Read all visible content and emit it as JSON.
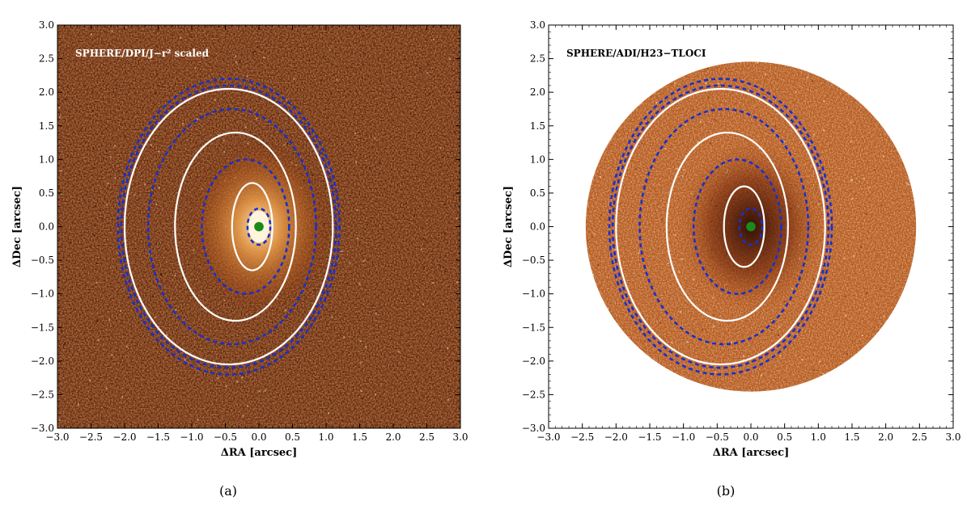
{
  "chart_data": [
    {
      "type": "image",
      "panel": "(a)",
      "title": "SPHERE/DPI/J−r² scaled",
      "xlabel": "ΔRA [arcsec]",
      "ylabel": "ΔDec [arcsec]",
      "xlim": [
        -3.0,
        3.0
      ],
      "ylim": [
        -3.0,
        3.0
      ],
      "x_ticks": [
        "−3.0",
        "−2.5",
        "−2.0",
        "−1.5",
        "−1.0",
        "−0.5",
        "0.0",
        "0.5",
        "1.0",
        "1.5",
        "2.0",
        "2.5",
        "3.0"
      ],
      "y_ticks": [
        "−3.0",
        "−2.5",
        "−2.0",
        "−1.5",
        "−1.0",
        "−0.5",
        "0.0",
        "0.5",
        "1.0",
        "1.5",
        "2.0",
        "2.5",
        "3.0"
      ],
      "field": "square",
      "ellipses": [
        {
          "style": "white-solid",
          "cx": -0.1,
          "cy": 0.0,
          "rx": 0.3,
          "ry": 0.65
        },
        {
          "style": "white-solid",
          "cx": -0.35,
          "cy": 0.0,
          "rx": 0.9,
          "ry": 1.4
        },
        {
          "style": "white-solid",
          "cx": -0.45,
          "cy": 0.0,
          "rx": 1.55,
          "ry": 2.05
        },
        {
          "style": "blue-dashed",
          "cx": 0.0,
          "cy": 0.0,
          "rx": 0.17,
          "ry": 0.27
        },
        {
          "style": "blue-dashed",
          "cx": -0.2,
          "cy": 0.0,
          "rx": 0.65,
          "ry": 1.0
        },
        {
          "style": "blue-dashed",
          "cx": -0.4,
          "cy": 0.0,
          "rx": 1.25,
          "ry": 1.75
        },
        {
          "style": "blue-dashed",
          "cx": -0.45,
          "cy": 0.0,
          "rx": 1.6,
          "ry": 2.1
        },
        {
          "style": "blue-dashed",
          "cx": -0.45,
          "cy": 0.0,
          "rx": 1.65,
          "ry": 2.2
        }
      ],
      "star_marker": {
        "x": 0.0,
        "y": 0.0,
        "r": 0.07,
        "color": "#1a8a1a"
      }
    },
    {
      "type": "image",
      "panel": "(b)",
      "title": "SPHERE/ADI/H23−TLOCI",
      "xlabel": "ΔRA [arcsec]",
      "ylabel": "ΔDec [arcsec]",
      "xlim": [
        -3.0,
        3.0
      ],
      "ylim": [
        -3.0,
        3.0
      ],
      "x_ticks": [
        "−3.0",
        "−2.5",
        "−2.0",
        "−1.5",
        "−1.0",
        "−0.5",
        "0.0",
        "0.5",
        "1.0",
        "1.5",
        "2.0",
        "2.5",
        "3.0"
      ],
      "y_ticks": [
        "−3.0",
        "−2.5",
        "−2.0",
        "−1.5",
        "−1.0",
        "−0.5",
        "0.0",
        "0.5",
        "1.0",
        "1.5",
        "2.0",
        "2.5",
        "3.0"
      ],
      "field": "circle",
      "field_radius": 2.45,
      "ellipses": [
        {
          "style": "white-solid",
          "cx": -0.1,
          "cy": 0.0,
          "rx": 0.3,
          "ry": 0.6
        },
        {
          "style": "white-solid",
          "cx": -0.35,
          "cy": 0.0,
          "rx": 0.9,
          "ry": 1.4
        },
        {
          "style": "white-solid",
          "cx": -0.45,
          "cy": 0.0,
          "rx": 1.55,
          "ry": 2.05
        },
        {
          "style": "blue-dashed",
          "cx": 0.0,
          "cy": 0.0,
          "rx": 0.17,
          "ry": 0.27
        },
        {
          "style": "blue-dashed",
          "cx": -0.2,
          "cy": 0.0,
          "rx": 0.65,
          "ry": 1.0
        },
        {
          "style": "blue-dashed",
          "cx": -0.4,
          "cy": 0.0,
          "rx": 1.25,
          "ry": 1.75
        },
        {
          "style": "blue-dashed",
          "cx": -0.45,
          "cy": 0.0,
          "rx": 1.6,
          "ry": 2.1
        },
        {
          "style": "blue-dashed",
          "cx": -0.45,
          "cy": 0.0,
          "rx": 1.65,
          "ry": 2.2
        }
      ],
      "star_marker": {
        "x": 0.0,
        "y": 0.0,
        "r": 0.07,
        "color": "#1a8a1a"
      }
    }
  ],
  "colors": {
    "background_dark": "#5a1e08",
    "background_mid": "#9a4a18",
    "disk_bright": "#f0b878",
    "ellipse_white": "#ffffff",
    "ellipse_blue": "#1a2fc8"
  }
}
